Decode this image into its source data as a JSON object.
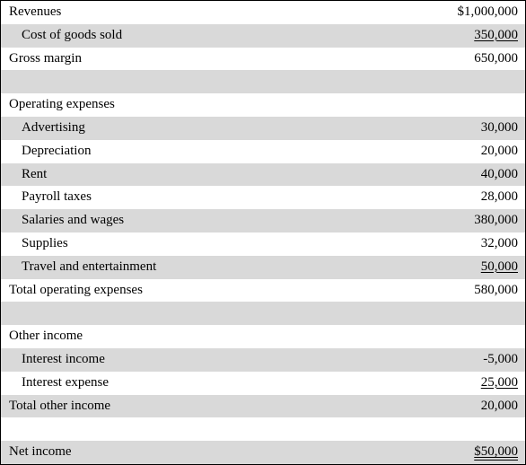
{
  "rows": [
    {
      "label": "Revenues",
      "amount": "$1,000,000"
    },
    {
      "label": "Cost of goods sold",
      "amount": "350,000"
    },
    {
      "label": "Gross margin",
      "amount": "650,000"
    },
    {
      "label": "",
      "amount": ""
    },
    {
      "label": "Operating expenses",
      "amount": ""
    },
    {
      "label": "Advertising",
      "amount": "30,000"
    },
    {
      "label": "Depreciation",
      "amount": "20,000"
    },
    {
      "label": "Rent",
      "amount": "40,000"
    },
    {
      "label": "Payroll taxes",
      "amount": "28,000"
    },
    {
      "label": "Salaries and wages",
      "amount": "380,000"
    },
    {
      "label": "Supplies",
      "amount": "32,000"
    },
    {
      "label": "Travel and entertainment",
      "amount": "50,000"
    },
    {
      "label": "Total operating expenses",
      "amount": "580,000"
    },
    {
      "label": "",
      "amount": ""
    },
    {
      "label": "Other income",
      "amount": ""
    },
    {
      "label": "Interest income",
      "amount": "-5,000"
    },
    {
      "label": "Interest expense",
      "amount": "25,000"
    },
    {
      "label": "Total other income",
      "amount": "20,000"
    },
    {
      "label": "",
      "amount": ""
    },
    {
      "label": "Net income",
      "amount": "$50,000"
    }
  ],
  "colors": {
    "shade": "#d9d9d9",
    "border": "#000000"
  }
}
